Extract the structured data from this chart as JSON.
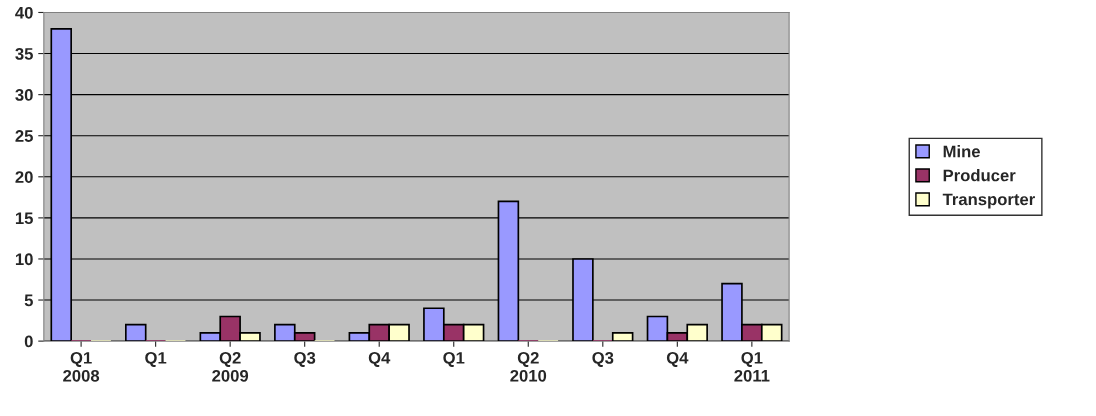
{
  "chart_data": {
    "type": "bar",
    "categories": [
      "Q1\n2008",
      "Q1",
      "Q2\n2009",
      "Q3",
      "Q4",
      "Q1",
      "Q2\n2010",
      "Q3",
      "Q4",
      "Q1\n2011"
    ],
    "series": [
      {
        "name": "Mine",
        "color": "#9999ff",
        "values": [
          38,
          2,
          1,
          2,
          1,
          4,
          17,
          10,
          3,
          7
        ]
      },
      {
        "name": "Producer",
        "color": "#993366",
        "values": [
          0,
          0,
          3,
          1,
          2,
          2,
          0,
          0,
          1,
          2
        ]
      },
      {
        "name": "Transporter",
        "color": "#ffffcc",
        "values": [
          0,
          0,
          1,
          0,
          2,
          2,
          0,
          1,
          2,
          2
        ]
      }
    ],
    "ylim": [
      0,
      40
    ],
    "yticks": [
      0,
      5,
      10,
      15,
      20,
      25,
      30,
      35,
      40
    ],
    "grid": "y",
    "legend": "right"
  }
}
